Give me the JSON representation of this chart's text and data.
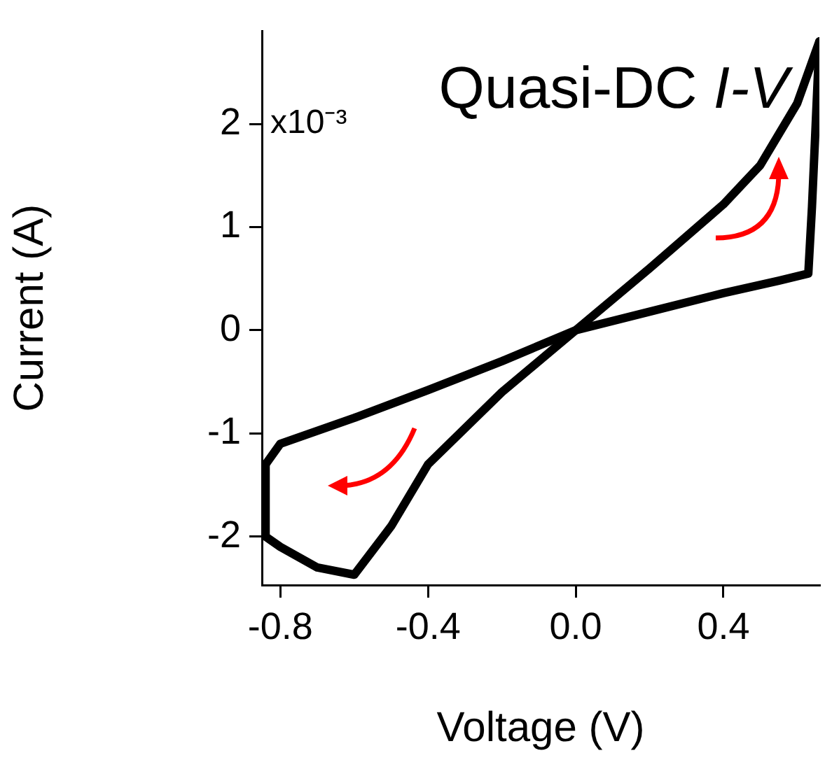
{
  "chart_data": {
    "type": "line",
    "title": "Quasi-DC I-V",
    "xlabel": "Voltage (V)",
    "ylabel": "Current (A)",
    "annotations": [
      "x10⁻³"
    ],
    "series": [
      {
        "color": "#000000",
        "x": [
          -0.84,
          -0.84,
          -0.8,
          -0.7,
          -0.6,
          -0.5,
          -0.4,
          -0.2,
          0,
          0.2,
          0.4,
          0.55,
          0.63,
          0.64,
          0.65,
          0.66
        ],
        "values": [
          -1.3,
          -2.0,
          -2.1,
          -2.3,
          -2.37,
          -1.9,
          -1.3,
          -0.6,
          0,
          0.18,
          0.36,
          0.48,
          0.55,
          1.2,
          2.0,
          2.8
        ]
      },
      {
        "color": "#000000",
        "x": [
          0.66,
          0.6,
          0.5,
          0.4,
          0.2,
          0,
          -0.2,
          -0.4,
          -0.6,
          -0.8,
          -0.84
        ],
        "values": [
          2.8,
          2.2,
          1.6,
          1.22,
          0.6,
          0,
          -0.3,
          -0.58,
          -0.85,
          -1.1,
          -1.3
        ]
      }
    ],
    "xlim": [
      -0.85,
      0.66
    ],
    "xticks": [
      {
        "value": -0.8,
        "label": "-0.8"
      },
      {
        "value": -0.4,
        "label": "-0.4"
      },
      {
        "value": 0,
        "label": "0.0"
      },
      {
        "value": 0.4,
        "label": "0.4"
      }
    ],
    "ylim": [
      -2.47,
      2.9
    ],
    "yticks": [
      -2,
      -1,
      0,
      1,
      2
    ],
    "grid": false,
    "legend": false,
    "marker": "none",
    "line_style": "solid"
  }
}
